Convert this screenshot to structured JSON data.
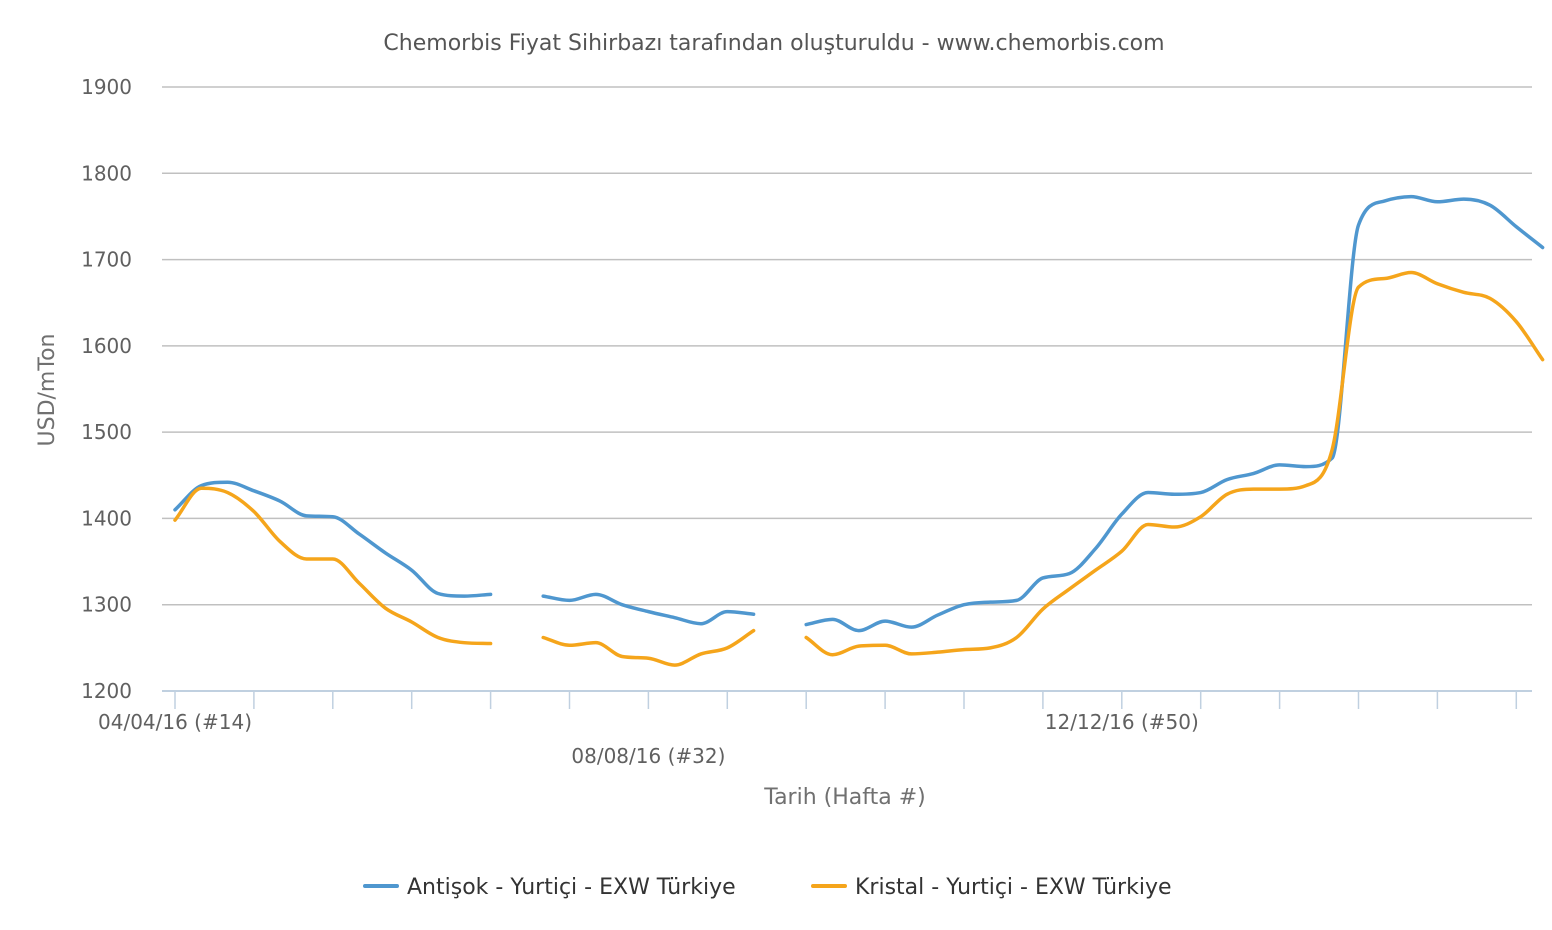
{
  "chart_data": {
    "type": "line",
    "title": "Chemorbis Fiyat Sihirbazı tarafından oluşturuldu - www.chemorbis.com",
    "xlabel": "Tarih (Hafta #)",
    "ylabel": "USD/mTon",
    "ylim": [
      1200,
      1900
    ],
    "yticks": [
      1200,
      1300,
      1400,
      1500,
      1600,
      1700,
      1800,
      1900
    ],
    "x_range_weeks": [
      14,
      65
    ],
    "x_tick_weeks": [
      14,
      17,
      20,
      23,
      26,
      29,
      32,
      35,
      38,
      41,
      44,
      47,
      50,
      53,
      56,
      59,
      62,
      65
    ],
    "x_tick_labels": [
      {
        "week": 14,
        "label": "04/04/16 (#14)",
        "row": 0
      },
      {
        "week": 32,
        "label": "08/08/16 (#32)",
        "row": 1
      },
      {
        "week": 50,
        "label": "12/12/16 (#50)",
        "row": 0
      }
    ],
    "grid": true,
    "legend_position": "bottom",
    "series": [
      {
        "name": "Antişok - Yurtiçi - EXW Türkiye",
        "color": "#4f97cf",
        "segments": [
          [
            [
              14,
              1410
            ],
            [
              15,
              1438
            ],
            [
              16,
              1442
            ],
            [
              17,
              1432
            ],
            [
              18,
              1420
            ],
            [
              19,
              1403
            ],
            [
              20,
              1402
            ],
            [
              21,
              1382
            ],
            [
              22,
              1360
            ],
            [
              23,
              1340
            ],
            [
              24,
              1313
            ],
            [
              25,
              1310
            ],
            [
              26,
              1312
            ]
          ],
          [
            [
              28,
              1310
            ],
            [
              29,
              1305
            ],
            [
              30,
              1312
            ],
            [
              31,
              1300
            ],
            [
              32,
              1292
            ],
            [
              33,
              1285
            ],
            [
              34,
              1278
            ],
            [
              35,
              1292
            ],
            [
              36,
              1289
            ]
          ],
          [
            [
              38,
              1277
            ],
            [
              39,
              1283
            ],
            [
              40,
              1270
            ],
            [
              41,
              1281
            ],
            [
              42,
              1274
            ],
            [
              43,
              1288
            ],
            [
              44,
              1300
            ],
            [
              45,
              1303
            ],
            [
              46,
              1305
            ],
            [
              47,
              1331
            ],
            [
              48,
              1336
            ],
            [
              49,
              1365
            ],
            [
              50,
              1405
            ],
            [
              51,
              1430
            ],
            [
              52,
              1428
            ],
            [
              53,
              1430
            ],
            [
              54,
              1445
            ],
            [
              55,
              1452
            ],
            [
              56,
              1462
            ],
            [
              57,
              1460
            ],
            [
              58,
              1470
            ],
            [
              59,
              1740
            ],
            [
              60,
              1768
            ],
            [
              61,
              1773
            ],
            [
              62,
              1767
            ],
            [
              63,
              1770
            ],
            [
              64,
              1763
            ],
            [
              65,
              1738
            ],
            [
              66,
              1714
            ]
          ]
        ]
      },
      {
        "name": "Kristal - Yurtiçi - EXW Türkiye",
        "color": "#f5a51b",
        "segments": [
          [
            [
              14,
              1398
            ],
            [
              15,
              1435
            ],
            [
              16,
              1430
            ],
            [
              17,
              1408
            ],
            [
              18,
              1373
            ],
            [
              19,
              1353
            ],
            [
              20,
              1353
            ],
            [
              21,
              1325
            ],
            [
              22,
              1296
            ],
            [
              23,
              1280
            ],
            [
              24,
              1262
            ],
            [
              25,
              1256
            ],
            [
              26,
              1255
            ]
          ],
          [
            [
              28,
              1262
            ],
            [
              29,
              1253
            ],
            [
              30,
              1256
            ],
            [
              31,
              1240
            ],
            [
              32,
              1238
            ],
            [
              33,
              1230
            ],
            [
              34,
              1243
            ],
            [
              35,
              1250
            ],
            [
              36,
              1270
            ]
          ],
          [
            [
              38,
              1262
            ],
            [
              39,
              1242
            ],
            [
              40,
              1252
            ],
            [
              41,
              1253
            ],
            [
              42,
              1243
            ],
            [
              43,
              1245
            ],
            [
              44,
              1248
            ],
            [
              45,
              1250
            ],
            [
              46,
              1262
            ],
            [
              47,
              1295
            ],
            [
              48,
              1318
            ],
            [
              49,
              1340
            ],
            [
              50,
              1362
            ],
            [
              51,
              1393
            ],
            [
              52,
              1390
            ],
            [
              53,
              1402
            ],
            [
              54,
              1428
            ],
            [
              55,
              1434
            ],
            [
              56,
              1434
            ],
            [
              57,
              1438
            ],
            [
              58,
              1480
            ],
            [
              59,
              1668
            ],
            [
              60,
              1678
            ],
            [
              61,
              1685
            ],
            [
              62,
              1672
            ],
            [
              63,
              1662
            ],
            [
              64,
              1655
            ],
            [
              65,
              1628
            ],
            [
              66,
              1584
            ]
          ]
        ]
      }
    ]
  }
}
